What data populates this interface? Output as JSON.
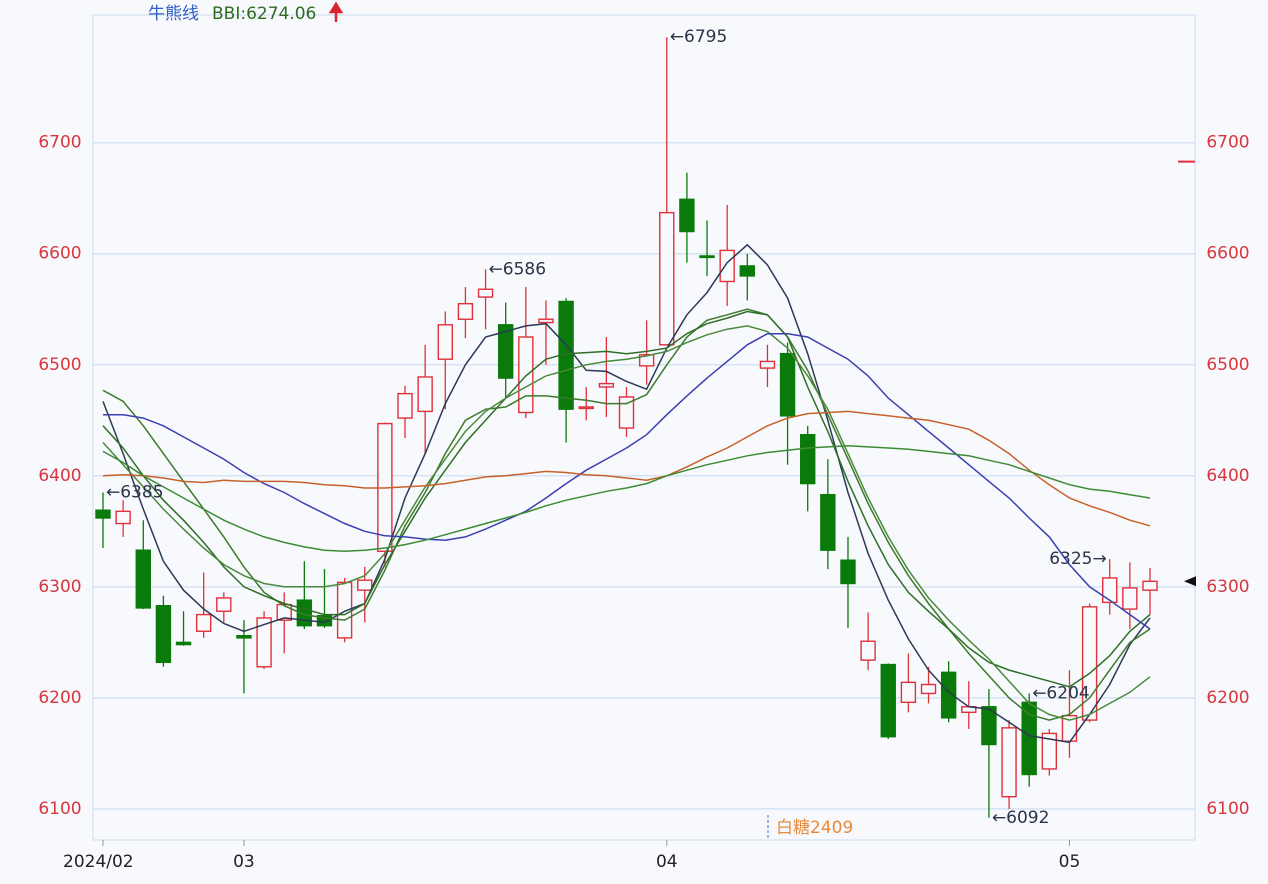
{
  "header": {
    "indicator": "牛熊线",
    "reading": "BBI:6274.06"
  },
  "footnote": "白糖2409",
  "chart_data": {
    "type": "candlestick",
    "categories": [
      "2024/02",
      null,
      null,
      null,
      null,
      null,
      null,
      "03",
      null,
      null,
      null,
      null,
      null,
      null,
      null,
      null,
      null,
      null,
      null,
      null,
      null,
      null,
      null,
      null,
      null,
      null,
      null,
      null,
      "04",
      null,
      null,
      null,
      null,
      null,
      null,
      null,
      null,
      null,
      null,
      null,
      null,
      null,
      null,
      null,
      null,
      null,
      null,
      null,
      "05",
      null,
      null,
      null,
      null
    ],
    "open": [
      6369,
      6357,
      6333,
      6283,
      6250,
      6260,
      6278,
      6256,
      6228,
      6270,
      6288,
      6274,
      6254,
      6297,
      6332,
      6452,
      6458,
      6505,
      6541,
      6561,
      6536,
      6457,
      6538,
      6557,
      6461,
      6480,
      6443,
      6499,
      6518,
      6649,
      6598,
      6575,
      6589,
      6497,
      6510,
      6437,
      6383,
      6324,
      6234,
      6230,
      6196,
      6204,
      6223,
      6187,
      6192,
      6111,
      6196,
      6136,
      6161,
      6180,
      6286,
      6280,
      6297
    ],
    "high": [
      6385,
      6378,
      6360,
      6292,
      6278,
      6313,
      6295,
      6270,
      6278,
      6295,
      6323,
      6316,
      6308,
      6318,
      6448,
      6481,
      6518,
      6548,
      6570,
      6586,
      6556,
      6570,
      6558,
      6560,
      6480,
      6525,
      6480,
      6540,
      6795,
      6673,
      6630,
      6644,
      6600,
      6518,
      6520,
      6445,
      6415,
      6345,
      6277,
      6231,
      6240,
      6228,
      6233,
      6215,
      6208,
      6180,
      6204,
      6172,
      6225,
      6285,
      6325,
      6322,
      6317
    ],
    "low": [
      6335,
      6345,
      6280,
      6228,
      6247,
      6254,
      6268,
      6204,
      6226,
      6240,
      6262,
      6263,
      6250,
      6268,
      6318,
      6434,
      6420,
      6460,
      6524,
      6532,
      6470,
      6452,
      6500,
      6430,
      6450,
      6453,
      6435,
      6482,
      6518,
      6592,
      6580,
      6553,
      6558,
      6480,
      6410,
      6368,
      6316,
      6263,
      6225,
      6163,
      6187,
      6195,
      6178,
      6172,
      6092,
      6100,
      6120,
      6130,
      6146,
      6178,
      6275,
      6262,
      6275
    ],
    "close": [
      6362,
      6368,
      6281,
      6232,
      6248,
      6275,
      6290,
      6254,
      6272,
      6284,
      6265,
      6265,
      6304,
      6306,
      6447,
      6474,
      6489,
      6536,
      6555,
      6568,
      6488,
      6525,
      6541,
      6460,
      6462,
      6483,
      6471,
      6509,
      6637,
      6620,
      6597,
      6603,
      6580,
      6503,
      6454,
      6393,
      6333,
      6303,
      6251,
      6165,
      6214,
      6212,
      6182,
      6192,
      6158,
      6173,
      6131,
      6168,
      6184,
      6282,
      6308,
      6299,
      6305
    ],
    "up_color": "#e0303a",
    "down_color": "#0a7a0a",
    "lines": [
      {
        "color": "#2b3a55",
        "values": [
          6467,
          6420,
          6370,
          6323,
          6297,
          6280,
          6267,
          6260,
          6266,
          6272,
          6270,
          6268,
          6278,
          6285,
          6325,
          6380,
          6420,
          6465,
          6500,
          6525,
          6530,
          6535,
          6537,
          6518,
          6495,
          6494,
          6485,
          6478,
          6515,
          6545,
          6565,
          6592,
          6608,
          6590,
          6560,
          6510,
          6450,
          6385,
          6330,
          6288,
          6253,
          6225,
          6205,
          6192,
          6190,
          6178,
          6166,
          6163,
          6160,
          6185,
          6212,
          6248,
          6272
        ]
      },
      {
        "color": "#3d7a2a",
        "values": [
          6477,
          6467,
          6445,
          6420,
          6395,
          6370,
          6345,
          6318,
          6295,
          6283,
          6275,
          6272,
          6270,
          6280,
          6315,
          6355,
          6385,
          6420,
          6450,
          6460,
          6462,
          6472,
          6472,
          6470,
          6468,
          6465,
          6465,
          6473,
          6500,
          6525,
          6540,
          6545,
          6550,
          6545,
          6525,
          6495,
          6455,
          6415,
          6375,
          6340,
          6310,
          6285,
          6262,
          6240,
          6220,
          6200,
          6185,
          6180,
          6185,
          6200,
          6225,
          6250,
          6262
        ]
      },
      {
        "color": "#2f6e26",
        "values": [
          6445,
          6425,
          6400,
          6378,
          6360,
          6340,
          6318,
          6300,
          6292,
          6285,
          6280,
          6275,
          6275,
          6285,
          6320,
          6350,
          6380,
          6405,
          6430,
          6450,
          6470,
          6490,
          6505,
          6510,
          6511,
          6512,
          6510,
          6512,
          6515,
          6528,
          6537,
          6542,
          6548,
          6545,
          6525,
          6480,
          6440,
          6395,
          6355,
          6320,
          6295,
          6278,
          6262,
          6245,
          6232,
          6225,
          6220,
          6215,
          6210,
          6222,
          6238,
          6260,
          6275
        ]
      },
      {
        "color": "#4a8a3a",
        "values": [
          6430,
          6410,
          6390,
          6370,
          6352,
          6335,
          6320,
          6310,
          6303,
          6300,
          6300,
          6300,
          6303,
          6310,
          6330,
          6360,
          6390,
          6415,
          6440,
          6458,
          6470,
          6480,
          6490,
          6495,
          6500,
          6503,
          6505,
          6508,
          6512,
          6520,
          6527,
          6532,
          6535,
          6530,
          6515,
          6490,
          6460,
          6420,
          6380,
          6345,
          6315,
          6290,
          6270,
          6252,
          6235,
          6215,
          6195,
          6185,
          6180,
          6185,
          6195,
          6205,
          6219
        ]
      },
      {
        "color": "#3a40b0",
        "values": [
          6455,
          6455,
          6452,
          6445,
          6435,
          6425,
          6415,
          6403,
          6393,
          6385,
          6375,
          6366,
          6357,
          6350,
          6346,
          6345,
          6343,
          6342,
          6345,
          6352,
          6360,
          6368,
          6380,
          6393,
          6405,
          6415,
          6425,
          6437,
          6455,
          6472,
          6488,
          6503,
          6518,
          6528,
          6528,
          6525,
          6515,
          6505,
          6490,
          6470,
          6455,
          6440,
          6425,
          6410,
          6395,
          6380,
          6362,
          6345,
          6320,
          6300,
          6288,
          6275,
          6262
        ]
      },
      {
        "color": "#c8602a",
        "values": [
          6400,
          6401,
          6400,
          6398,
          6395,
          6394,
          6396,
          6395,
          6395,
          6395,
          6394,
          6392,
          6391,
          6389,
          6389,
          6390,
          6391,
          6393,
          6396,
          6399,
          6400,
          6402,
          6404,
          6403,
          6401,
          6400,
          6398,
          6396,
          6400,
          6408,
          6417,
          6425,
          6435,
          6445,
          6452,
          6456,
          6457,
          6458,
          6456,
          6454,
          6452,
          6450,
          6446,
          6442,
          6432,
          6420,
          6405,
          6392,
          6380,
          6373,
          6367,
          6360,
          6355
        ]
      },
      {
        "color": "#3c8c34",
        "values": [
          6422,
          6412,
          6400,
          6390,
          6380,
          6370,
          6360,
          6352,
          6345,
          6340,
          6336,
          6333,
          6332,
          6333,
          6335,
          6338,
          6342,
          6347,
          6352,
          6357,
          6362,
          6367,
          6373,
          6378,
          6382,
          6386,
          6389,
          6393,
          6400,
          6405,
          6410,
          6414,
          6418,
          6421,
          6423,
          6425,
          6426,
          6427,
          6426,
          6425,
          6424,
          6422,
          6420,
          6418,
          6414,
          6410,
          6404,
          6398,
          6392,
          6388,
          6386,
          6383,
          6380
        ]
      }
    ],
    "annotations": [
      {
        "label": "←6385",
        "value": 6385
      },
      {
        "label": "←6204",
        "value": 6204
      },
      {
        "label": "←6586",
        "value": 6586
      },
      {
        "label": "←6795",
        "value": 6795
      },
      {
        "label": "6325→",
        "value": 6325
      },
      {
        "label": "←6092",
        "value": 6092
      }
    ],
    "price_marker": 6683,
    "ylim": [
      6072,
      6815
    ],
    "yticks": [
      6100,
      6200,
      6300,
      6400,
      6500,
      6600,
      6700
    ],
    "y2lim": [
      6072,
      6815
    ],
    "y2ticks": [
      6100,
      6200,
      6300,
      6400,
      6500,
      6600,
      6700
    ],
    "grid": true,
    "tick_color": "#d9363e"
  }
}
